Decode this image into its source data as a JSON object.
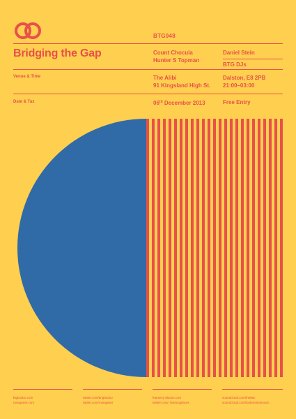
{
  "colors": {
    "background": "#FFCF4F",
    "accent": "#E8504A",
    "circle": "#306BA8"
  },
  "logo_icon": "interlocking-circles-icon",
  "header": {
    "code": "BTG048",
    "title": "Bridging the Gap",
    "artists_col1": [
      "Count Chocula",
      "Hunter S Topman"
    ],
    "artists_col2": [
      "Daniel Stein",
      "BTG DJs"
    ]
  },
  "venue": {
    "label": "Venue & Time",
    "name": "The Alibi",
    "address": "91 Kingsland High St.",
    "area": "Dalston, E8 2PB",
    "time": "21:00–03:00"
  },
  "date": {
    "label": "Date & Tax",
    "day": "06",
    "day_suffix": "th",
    "month_year": " December 2013",
    "price": "Free Entry"
  },
  "footer": [
    [
      "bigbodoo.com",
      "rosegarter.com"
    ],
    [
      "twitter.com/brigbodoo",
      "twitter.com/rosegarter"
    ],
    [
      "fearsexy-places.com",
      "twitter.com/_fearsxyplaces"
    ],
    [
      "soundcloud.com/thefatc",
      "soundcloud.com/lootemmesmusic"
    ]
  ]
}
